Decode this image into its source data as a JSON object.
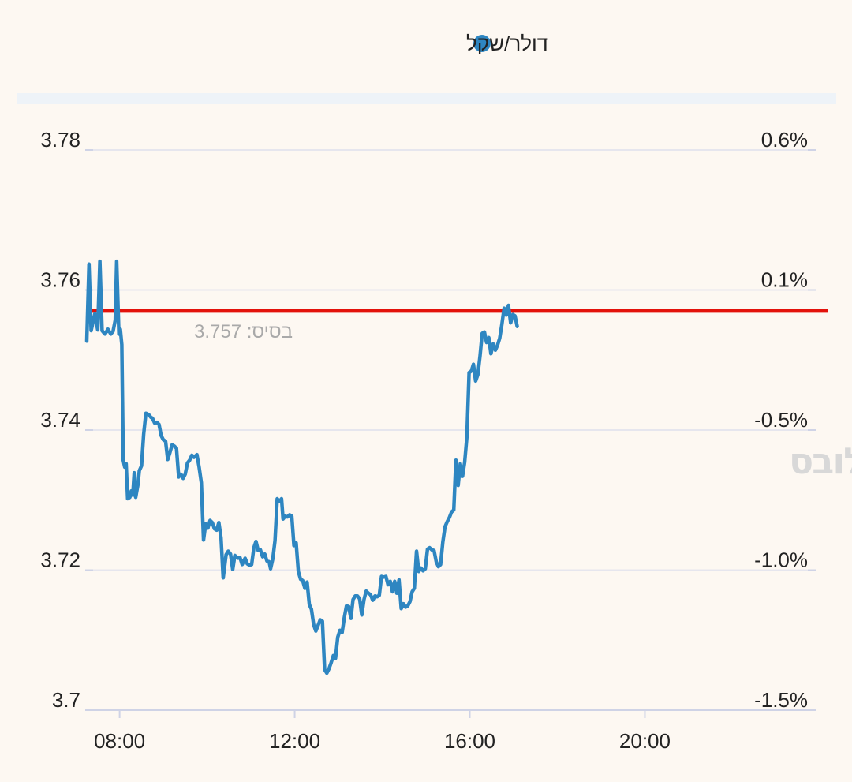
{
  "chart_data": {
    "type": "line",
    "legend": {
      "placement": "top-center",
      "entries": [
        {
          "label": "דולר/שקל",
          "color": "#2e86c1"
        }
      ]
    },
    "series": [
      {
        "name": "דולר/שקל",
        "color": "#2e86c1",
        "points": [
          [
            "07:15",
            3.7527
          ],
          [
            "07:18",
            3.7637
          ],
          [
            "07:21",
            3.7542
          ],
          [
            "07:26",
            3.7566
          ],
          [
            "07:30",
            3.7543
          ],
          [
            "07:33",
            3.7641
          ],
          [
            "07:36",
            3.7542
          ],
          [
            "07:40",
            3.7537
          ],
          [
            "07:44",
            3.7544
          ],
          [
            "07:48",
            3.7537
          ],
          [
            "07:51",
            3.7541
          ],
          [
            "07:54",
            3.7557
          ],
          [
            "07:56",
            3.7641
          ],
          [
            "07:59",
            3.7537
          ],
          [
            "08:01",
            3.7544
          ],
          [
            "08:03",
            3.7522
          ],
          [
            "08:05",
            3.7357
          ],
          [
            "08:07",
            3.7347
          ],
          [
            "08:09",
            3.7352
          ],
          [
            "08:11",
            3.7302
          ],
          [
            "08:14",
            3.7304
          ],
          [
            "08:16",
            3.7313
          ],
          [
            "08:18",
            3.7307
          ],
          [
            "08:20",
            3.7339
          ],
          [
            "08:22",
            3.7304
          ],
          [
            "08:25",
            3.7321
          ],
          [
            "08:27",
            3.7342
          ],
          [
            "08:30",
            3.7349
          ],
          [
            "08:33",
            3.7394
          ],
          [
            "08:36",
            3.7424
          ],
          [
            "08:40",
            3.7422
          ],
          [
            "08:43",
            3.7418
          ],
          [
            "08:45",
            3.7417
          ],
          [
            "08:48",
            3.741
          ],
          [
            "08:51",
            3.7411
          ],
          [
            "08:54",
            3.7408
          ],
          [
            "08:57",
            3.7392
          ],
          [
            "09:00",
            3.7386
          ],
          [
            "09:03",
            3.7384
          ],
          [
            "09:06",
            3.7358
          ],
          [
            "09:09",
            3.7368
          ],
          [
            "09:12",
            3.7379
          ],
          [
            "09:15",
            3.7377
          ],
          [
            "09:18",
            3.7374
          ],
          [
            "09:21",
            3.7333
          ],
          [
            "09:24",
            3.7337
          ],
          [
            "09:27",
            3.7331
          ],
          [
            "09:30",
            3.7337
          ],
          [
            "09:33",
            3.7353
          ],
          [
            "09:36",
            3.7357
          ],
          [
            "09:39",
            3.7364
          ],
          [
            "09:42",
            3.7361
          ],
          [
            "09:46",
            3.7365
          ],
          [
            "09:49",
            3.7347
          ],
          [
            "09:52",
            3.7325
          ],
          [
            "09:55",
            3.7243
          ],
          [
            "09:58",
            3.7266
          ],
          [
            "10:01",
            3.726
          ],
          [
            "10:04",
            3.7271
          ],
          [
            "10:07",
            3.7268
          ],
          [
            "10:10",
            3.7259
          ],
          [
            "10:13",
            3.7257
          ],
          [
            "10:16",
            3.7268
          ],
          [
            "10:19",
            3.7246
          ],
          [
            "10:22",
            3.7189
          ],
          [
            "10:26",
            3.7222
          ],
          [
            "10:29",
            3.7227
          ],
          [
            "10:32",
            3.7223
          ],
          [
            "10:35",
            3.7201
          ],
          [
            "10:38",
            3.7221
          ],
          [
            "10:42",
            3.7217
          ],
          [
            "10:45",
            3.7218
          ],
          [
            "10:48",
            3.7208
          ],
          [
            "10:52",
            3.7217
          ],
          [
            "10:55",
            3.7209
          ],
          [
            "10:58",
            3.7207
          ],
          [
            "11:01",
            3.7208
          ],
          [
            "11:04",
            3.7232
          ],
          [
            "11:07",
            3.7241
          ],
          [
            "11:10",
            3.7228
          ],
          [
            "11:13",
            3.7229
          ],
          [
            "11:16",
            3.7219
          ],
          [
            "11:19",
            3.7223
          ],
          [
            "11:22",
            3.7213
          ],
          [
            "11:25",
            3.7212
          ],
          [
            "11:27",
            3.7202
          ],
          [
            "11:30",
            3.7216
          ],
          [
            "11:33",
            3.7242
          ],
          [
            "11:36",
            3.7302
          ],
          [
            "11:39",
            3.7298
          ],
          [
            "11:42",
            3.7302
          ],
          [
            "11:44",
            3.7273
          ],
          [
            "11:47",
            3.7277
          ],
          [
            "11:50",
            3.7276
          ],
          [
            "11:53",
            3.7279
          ],
          [
            "11:56",
            3.7277
          ],
          [
            "11:59",
            3.7235
          ],
          [
            "12:02",
            3.7239
          ],
          [
            "12:05",
            3.7198
          ],
          [
            "12:08",
            3.7187
          ],
          [
            "12:11",
            3.7185
          ],
          [
            "12:14",
            3.7174
          ],
          [
            "12:17",
            3.7183
          ],
          [
            "12:20",
            3.7151
          ],
          [
            "12:23",
            3.7144
          ],
          [
            "12:26",
            3.7122
          ],
          [
            "12:29",
            3.7113
          ],
          [
            "12:32",
            3.7121
          ],
          [
            "12:35",
            3.7129
          ],
          [
            "12:38",
            3.7127
          ],
          [
            "12:41",
            3.7058
          ],
          [
            "12:44",
            3.7053
          ],
          [
            "12:47",
            3.7059
          ],
          [
            "12:50",
            3.7068
          ],
          [
            "12:53",
            3.7078
          ],
          [
            "12:56",
            3.7074
          ],
          [
            "12:59",
            3.7104
          ],
          [
            "13:02",
            3.7114
          ],
          [
            "13:05",
            3.7111
          ],
          [
            "13:08",
            3.7132
          ],
          [
            "13:11",
            3.7149
          ],
          [
            "13:14",
            3.7148
          ],
          [
            "13:17",
            3.7131
          ],
          [
            "13:20",
            3.7158
          ],
          [
            "13:23",
            3.7163
          ],
          [
            "13:26",
            3.7163
          ],
          [
            "13:29",
            3.7159
          ],
          [
            "13:32",
            3.7136
          ],
          [
            "13:35",
            3.7158
          ],
          [
            "13:38",
            3.717
          ],
          [
            "13:41",
            3.7167
          ],
          [
            "13:44",
            3.7165
          ],
          [
            "13:47",
            3.7157
          ],
          [
            "13:50",
            3.7163
          ],
          [
            "13:53",
            3.7162
          ],
          [
            "13:56",
            3.7164
          ],
          [
            "13:59",
            3.7191
          ],
          [
            "14:02",
            3.719
          ],
          [
            "14:05",
            3.7191
          ],
          [
            "14:08",
            3.7179
          ],
          [
            "14:11",
            3.7184
          ],
          [
            "14:14",
            3.7169
          ],
          [
            "14:17",
            3.7184
          ],
          [
            "14:20",
            3.7167
          ],
          [
            "14:23",
            3.7186
          ],
          [
            "14:26",
            3.7145
          ],
          [
            "14:29",
            3.7152
          ],
          [
            "14:32",
            3.7147
          ],
          [
            "14:35",
            3.7149
          ],
          [
            "14:38",
            3.7155
          ],
          [
            "14:41",
            3.7169
          ],
          [
            "14:44",
            3.7174
          ],
          [
            "14:47",
            3.7227
          ],
          [
            "14:50",
            3.7198
          ],
          [
            "14:53",
            3.7203
          ],
          [
            "14:56",
            3.7199
          ],
          [
            "14:59",
            3.7202
          ],
          [
            "15:02",
            3.723
          ],
          [
            "15:05",
            3.7232
          ],
          [
            "15:08",
            3.7229
          ],
          [
            "15:11",
            3.7228
          ],
          [
            "15:14",
            3.7212
          ],
          [
            "15:17",
            3.7205
          ],
          [
            "15:20",
            3.7208
          ],
          [
            "15:23",
            3.724
          ],
          [
            "15:26",
            3.7262
          ],
          [
            "15:29",
            3.7269
          ],
          [
            "15:32",
            3.7275
          ],
          [
            "15:35",
            3.7283
          ],
          [
            "15:38",
            3.7286
          ],
          [
            "15:41",
            3.7357
          ],
          [
            "15:44",
            3.7321
          ],
          [
            "15:47",
            3.7352
          ],
          [
            "15:50",
            3.7334
          ],
          [
            "15:53",
            3.7354
          ],
          [
            "15:56",
            3.739
          ],
          [
            "15:59",
            3.7482
          ],
          [
            "16:02",
            3.7484
          ],
          [
            "16:05",
            3.7494
          ],
          [
            "16:08",
            3.747
          ],
          [
            "16:11",
            3.7479
          ],
          [
            "16:14",
            3.7506
          ],
          [
            "16:17",
            3.7538
          ],
          [
            "16:20",
            3.754
          ],
          [
            "16:23",
            3.7525
          ],
          [
            "16:26",
            3.7532
          ],
          [
            "16:29",
            3.7509
          ],
          [
            "16:32",
            3.7523
          ],
          [
            "16:35",
            3.7514
          ],
          [
            "16:38",
            3.7521
          ],
          [
            "16:41",
            3.7531
          ],
          [
            "16:44",
            3.7551
          ],
          [
            "16:47",
            3.7574
          ],
          [
            "16:50",
            3.7564
          ],
          [
            "16:53",
            3.7578
          ],
          [
            "16:56",
            3.7553
          ],
          [
            "16:59",
            3.7565
          ],
          [
            "17:02",
            3.7563
          ],
          [
            "17:05",
            3.7548
          ]
        ]
      }
    ],
    "reference_line": {
      "value": 3.757,
      "color": "#e3120b",
      "label": "בסיס: 3.757"
    },
    "x_axis": {
      "ticks": [
        "08:00",
        "12:00",
        "16:00",
        "20:00"
      ],
      "range": [
        "07:15",
        "23:52"
      ]
    },
    "y_axis_left": {
      "ticks": [
        "3.78",
        "3.76",
        "3.74",
        "3.72",
        "3.7"
      ],
      "range": [
        3.7,
        3.78
      ]
    },
    "y_axis_right": {
      "ticks": [
        "0.6%",
        "0.1%",
        "-0.5%",
        "-1.0%",
        "-1.5%"
      ]
    },
    "grid": true,
    "watermark": "גלובס"
  }
}
